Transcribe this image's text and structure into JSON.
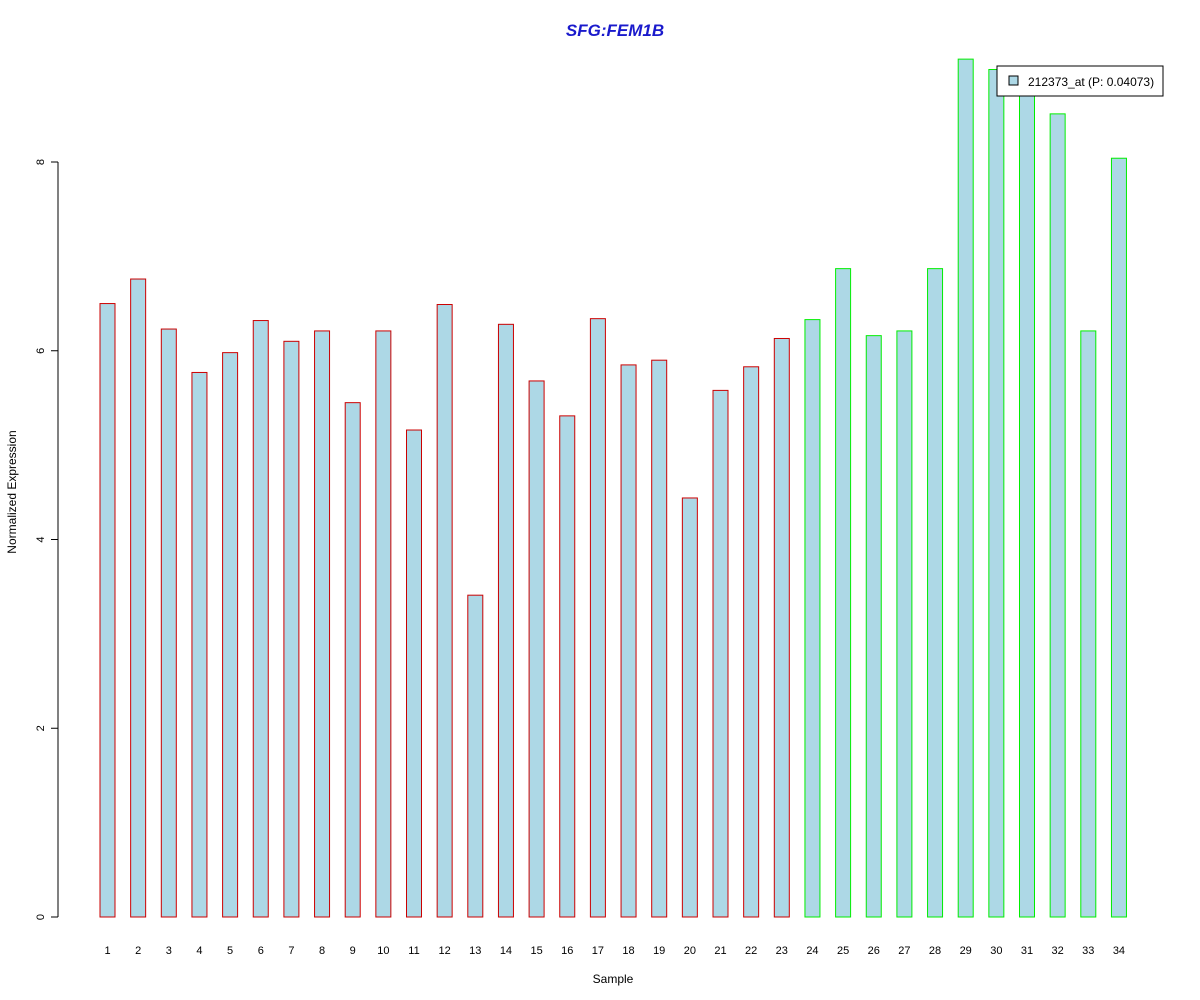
{
  "chart_data": {
    "type": "bar",
    "title": "SFG:FEM1B",
    "xlabel": "Sample",
    "ylabel": "Normalized Expression",
    "categories": [
      "1",
      "2",
      "3",
      "4",
      "5",
      "6",
      "7",
      "8",
      "9",
      "10",
      "11",
      "12",
      "13",
      "14",
      "15",
      "16",
      "17",
      "18",
      "19",
      "20",
      "21",
      "22",
      "23",
      "24",
      "25",
      "26",
      "27",
      "28",
      "29",
      "30",
      "31",
      "32",
      "33",
      "34"
    ],
    "y_ticks": [
      "0",
      "2",
      "4",
      "6",
      "8"
    ],
    "ylim": [
      0,
      9.1
    ],
    "series": [
      {
        "name": "212373_at (P: 0.04073)",
        "values": [
          6.5,
          6.76,
          6.23,
          5.77,
          5.98,
          6.32,
          6.1,
          6.21,
          5.45,
          6.21,
          5.16,
          6.49,
          3.41,
          6.28,
          5.68,
          5.31,
          6.34,
          5.85,
          5.9,
          4.44,
          5.58,
          5.83,
          6.13,
          6.33,
          6.87,
          6.16,
          6.21,
          6.87,
          9.09,
          8.98,
          8.81,
          8.51,
          6.21,
          8.04
        ]
      }
    ],
    "group_borders": [
      "#cc0000",
      "#cc0000",
      "#cc0000",
      "#cc0000",
      "#cc0000",
      "#cc0000",
      "#cc0000",
      "#cc0000",
      "#cc0000",
      "#cc0000",
      "#cc0000",
      "#cc0000",
      "#cc0000",
      "#cc0000",
      "#cc0000",
      "#cc0000",
      "#cc0000",
      "#cc0000",
      "#cc0000",
      "#cc0000",
      "#cc0000",
      "#cc0000",
      "#cc0000",
      "#00ee00",
      "#00ee00",
      "#00ee00",
      "#00ee00",
      "#00ee00",
      "#00ee00",
      "#00ee00",
      "#00ee00",
      "#00ee00",
      "#00ee00",
      "#00ee00"
    ],
    "legend_placement": "top-right",
    "grid": false,
    "colors": {
      "bar_fill": "#add8e6",
      "title": "#1a1acc"
    }
  }
}
